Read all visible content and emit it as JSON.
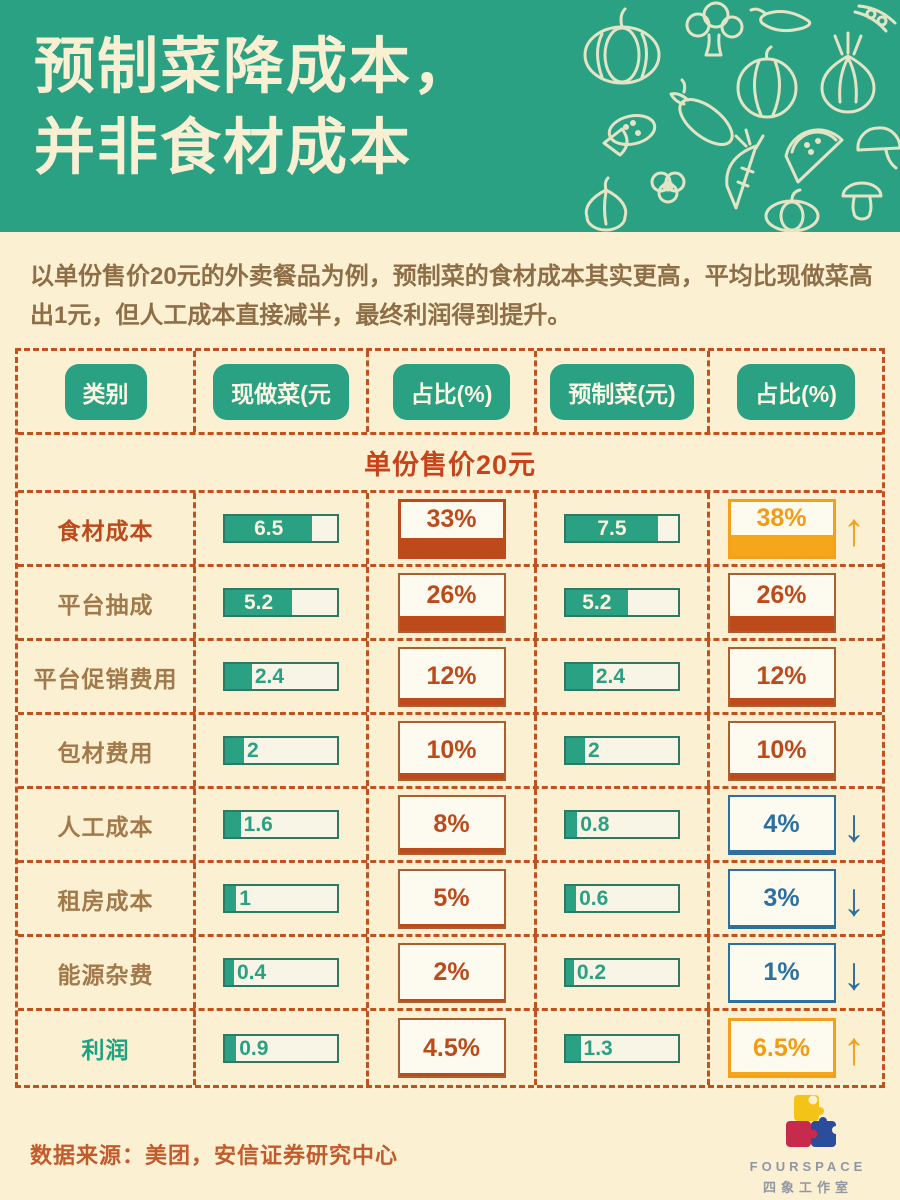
{
  "header": {
    "title_line1": "预制菜降成本，",
    "title_line2": "并非食材成本"
  },
  "intro": {
    "text": "以单份售价20元的外卖餐品为例，预制菜的食材成本其实更高，平均比现做菜高出1元，但人工成本直接减半，最终利润得到提升。"
  },
  "table": {
    "columns": [
      "类别",
      "现做菜(元",
      "占比(%)",
      "预制菜(元)",
      "占比(%)"
    ],
    "merged_row": "单份售价20元",
    "rows": [
      {
        "label": "食材成本",
        "label_style": "emph-orange",
        "fresh": {
          "value": "6.5",
          "fill_pct": 78,
          "text_inside": true
        },
        "fresh_share": {
          "value": "33%",
          "pct": 33,
          "style": "strong"
        },
        "premade": {
          "value": "7.5",
          "fill_pct": 82,
          "text_inside": true
        },
        "premade_share": {
          "value": "38%",
          "pct": 38,
          "style": "amber",
          "arrow": "up"
        }
      },
      {
        "label": "平台抽成",
        "label_style": "",
        "fresh": {
          "value": "5.2",
          "fill_pct": 60,
          "text_inside": true
        },
        "fresh_share": {
          "value": "26%",
          "pct": 26,
          "style": "normal"
        },
        "premade": {
          "value": "5.2",
          "fill_pct": 55,
          "text_inside": true
        },
        "premade_share": {
          "value": "26%",
          "pct": 26,
          "style": "normal"
        }
      },
      {
        "label": "平台促销费用",
        "label_style": "",
        "fresh": {
          "value": "2.4",
          "fill_pct": 24,
          "text_inside": false
        },
        "fresh_share": {
          "value": "12%",
          "pct": 12,
          "style": "normal"
        },
        "premade": {
          "value": "2.4",
          "fill_pct": 24,
          "text_inside": false
        },
        "premade_share": {
          "value": "12%",
          "pct": 12,
          "style": "normal"
        }
      },
      {
        "label": "包材费用",
        "label_style": "",
        "fresh": {
          "value": "2",
          "fill_pct": 17,
          "text_inside": false
        },
        "fresh_share": {
          "value": "10%",
          "pct": 10,
          "style": "normal"
        },
        "premade": {
          "value": "2",
          "fill_pct": 17,
          "text_inside": false
        },
        "premade_share": {
          "value": "10%",
          "pct": 10,
          "style": "normal"
        }
      },
      {
        "label": "人工成本",
        "label_style": "",
        "fresh": {
          "value": "1.6",
          "fill_pct": 14,
          "text_inside": false
        },
        "fresh_share": {
          "value": "8%",
          "pct": 8,
          "style": "normal"
        },
        "premade": {
          "value": "0.8",
          "fill_pct": 10,
          "text_inside": false
        },
        "premade_share": {
          "value": "4%",
          "pct": 4,
          "style": "blue",
          "arrow": "down"
        }
      },
      {
        "label": "租房成本",
        "label_style": "",
        "fresh": {
          "value": "1",
          "fill_pct": 10,
          "text_inside": false
        },
        "fresh_share": {
          "value": "5%",
          "pct": 5,
          "style": "normal"
        },
        "premade": {
          "value": "0.6",
          "fill_pct": 9,
          "text_inside": false
        },
        "premade_share": {
          "value": "3%",
          "pct": 3,
          "style": "blue",
          "arrow": "down"
        }
      },
      {
        "label": "能源杂费",
        "label_style": "",
        "fresh": {
          "value": "0.4",
          "fill_pct": 8,
          "text_inside": false
        },
        "fresh_share": {
          "value": "2%",
          "pct": 2,
          "style": "normal"
        },
        "premade": {
          "value": "0.2",
          "fill_pct": 7,
          "text_inside": false
        },
        "premade_share": {
          "value": "1%",
          "pct": 1,
          "style": "blue",
          "arrow": "down"
        }
      },
      {
        "label": "利润",
        "label_style": "emph-green",
        "fresh": {
          "value": "0.9",
          "fill_pct": 10,
          "text_inside": false
        },
        "fresh_share": {
          "value": "4.5%",
          "pct": 4.5,
          "style": "normal"
        },
        "premade": {
          "value": "1.3",
          "fill_pct": 13,
          "text_inside": false
        },
        "premade_share": {
          "value": "6.5%",
          "pct": 6.5,
          "style": "amber",
          "arrow": "up"
        }
      }
    ]
  },
  "arrows": {
    "up": "↑",
    "down": "↓"
  },
  "footer": {
    "source": "数据来源：美团，安信证券研究中心",
    "logo_name": "FOURSPACE",
    "logo_sub": "四象工作室"
  },
  "colors": {
    "header_green": "#2ba184",
    "page_cream": "#fcf0d3",
    "rust_orange": "#bc4a1a",
    "amber": "#f2a11d",
    "blue": "#2d6f9e",
    "teal_green": "#2aa183",
    "label_brown": "#a1794b"
  },
  "chart_data": {
    "type": "table",
    "title": "预制菜降成本，并非食材成本",
    "subtitle": "单份售价20元",
    "columns": [
      "类别",
      "现做菜(元)",
      "占比(%)",
      "预制菜(元)",
      "占比(%)"
    ],
    "categories": [
      "食材成本",
      "平台抽成",
      "平台促销费用",
      "包材费用",
      "人工成本",
      "租房成本",
      "能源杂费",
      "利润"
    ],
    "series": [
      {
        "name": "现做菜(元)",
        "values": [
          6.5,
          5.2,
          2.4,
          2,
          1.6,
          1,
          0.4,
          0.9
        ]
      },
      {
        "name": "现做菜占比(%)",
        "values": [
          33,
          26,
          12,
          10,
          8,
          5,
          2,
          4.5
        ]
      },
      {
        "name": "预制菜(元)",
        "values": [
          7.5,
          5.2,
          2.4,
          2,
          0.8,
          0.6,
          0.2,
          1.3
        ]
      },
      {
        "name": "预制菜占比(%)",
        "values": [
          38,
          26,
          12,
          10,
          4,
          3,
          1,
          6.5
        ]
      }
    ],
    "trend_vs_fresh": [
      "up",
      "flat",
      "flat",
      "flat",
      "down",
      "down",
      "down",
      "up"
    ],
    "source_note": "数据来源：美团，安信证券研究中心"
  }
}
